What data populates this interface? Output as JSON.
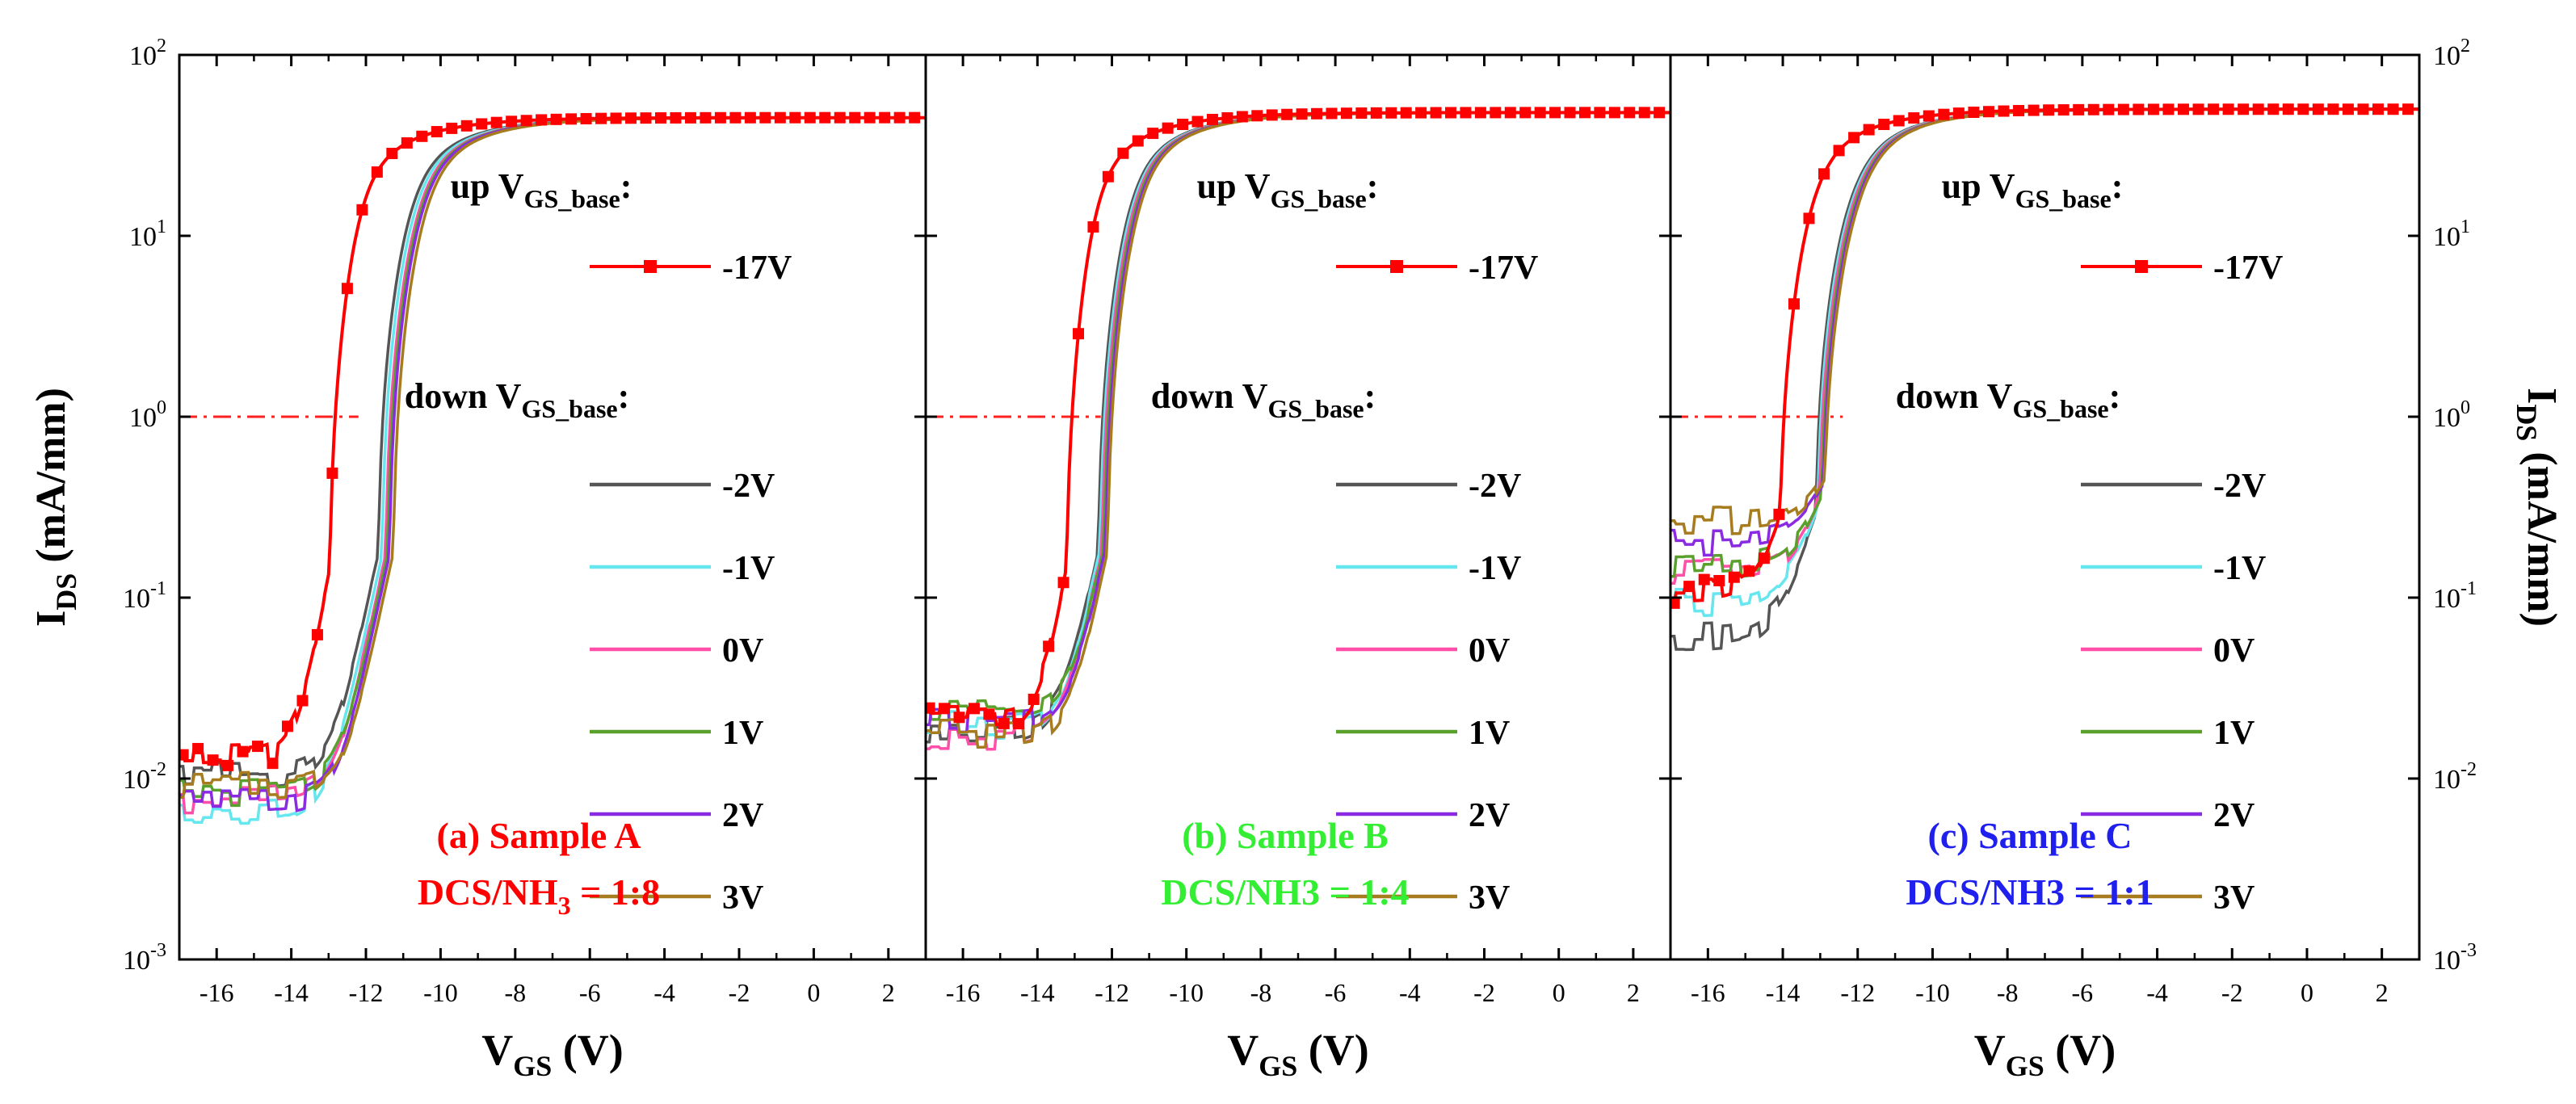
{
  "figure": {
    "ylabel_main": "I",
    "ylabel_sub": "DS",
    "ylabel_unit": " (mA/mm)",
    "xlabel_main": "V",
    "xlabel_sub": "GS",
    "xlabel_unit": " (V)",
    "y_tick_base": "10",
    "y_tick_exponents": [
      "-3",
      "-2",
      "-1",
      "0",
      "1",
      "2"
    ],
    "x_tick_labels": [
      "-16",
      "-14",
      "-12",
      "-10",
      "-8",
      "-6",
      "-4",
      "-2",
      "0",
      "2"
    ],
    "legend_up_title": "up V",
    "legend_down_title": "down V",
    "legend_title_sub": "GS_base",
    "legend_title_suffix": ":"
  },
  "chart_data": [
    {
      "type": "line",
      "panel": "a",
      "title_line1": "(a) Sample A",
      "title_line2_pre": "DCS/NH",
      "title_line2_sub": "3",
      "title_line2_post": " = 1:8",
      "title_color": "#ff0000",
      "xlim": [
        -17,
        3
      ],
      "ylim_log10": [
        -3,
        2
      ],
      "ylog": true,
      "reference_line": 1,
      "series": [
        {
          "name": "-17V",
          "group": "up",
          "color": "#ff0000",
          "marker": "square",
          "vth": -12.4,
          "ion": 45,
          "ss": 0.32,
          "floor": 0.013
        },
        {
          "name": "-2V",
          "group": "down",
          "color": "#555555",
          "vth": -11.1,
          "ion": 45,
          "ss": 0.38,
          "floor": 0.0105
        },
        {
          "name": "-1V",
          "group": "down",
          "color": "#66e6ee",
          "vth": -11.0,
          "ion": 45,
          "ss": 0.38,
          "floor": 0.0068
        },
        {
          "name": "0V",
          "group": "down",
          "color": "#ff4fa8",
          "vth": -10.9,
          "ion": 45,
          "ss": 0.38,
          "floor": 0.0078
        },
        {
          "name": "1V",
          "group": "down",
          "color": "#5aa02c",
          "vth": -10.85,
          "ion": 45,
          "ss": 0.38,
          "floor": 0.0085
        },
        {
          "name": "2V",
          "group": "down",
          "color": "#8a2be2",
          "vth": -10.8,
          "ion": 45,
          "ss": 0.38,
          "floor": 0.0075
        },
        {
          "name": "3V",
          "group": "down",
          "color": "#a67c1e",
          "vth": -10.7,
          "ion": 45,
          "ss": 0.38,
          "floor": 0.0092
        }
      ]
    },
    {
      "type": "line",
      "panel": "b",
      "title_line1": "(b) Sample B",
      "title_line2_pre": "DCS/NH3 = 1:4",
      "title_line2_sub": "",
      "title_line2_post": "",
      "title_color": "#33ee33",
      "xlim": [
        -17,
        3
      ],
      "ylim_log10": [
        -3,
        2
      ],
      "ylog": true,
      "reference_line": 1,
      "series": [
        {
          "name": "-17V",
          "group": "up",
          "color": "#ff0000",
          "marker": "square",
          "vth": -12.65,
          "ion": 48,
          "ss": 0.3,
          "floor": 0.022
        },
        {
          "name": "-2V",
          "group": "down",
          "color": "#555555",
          "vth": -11.8,
          "ion": 48,
          "ss": 0.36,
          "floor": 0.019
        },
        {
          "name": "-1V",
          "group": "down",
          "color": "#66e6ee",
          "vth": -11.75,
          "ion": 48,
          "ss": 0.36,
          "floor": 0.02
        },
        {
          "name": "0V",
          "group": "down",
          "color": "#ff4fa8",
          "vth": -11.7,
          "ion": 48,
          "ss": 0.36,
          "floor": 0.0175
        },
        {
          "name": "1V",
          "group": "down",
          "color": "#5aa02c",
          "vth": -11.65,
          "ion": 48,
          "ss": 0.36,
          "floor": 0.023
        },
        {
          "name": "2V",
          "group": "down",
          "color": "#8a2be2",
          "vth": -11.6,
          "ion": 48,
          "ss": 0.36,
          "floor": 0.021
        },
        {
          "name": "3V",
          "group": "down",
          "color": "#a67c1e",
          "vth": -11.55,
          "ion": 48,
          "ss": 0.36,
          "floor": 0.018
        }
      ]
    },
    {
      "type": "line",
      "panel": "c",
      "title_line1": "(c) Sample C",
      "title_line2_pre": "DCS/NH3 = 1:1",
      "title_line2_sub": "",
      "title_line2_post": "",
      "title_color": "#2020ee",
      "xlim": [
        -17,
        3
      ],
      "ylim_log10": [
        -3,
        2
      ],
      "ylog": true,
      "reference_line": 1,
      "series": [
        {
          "name": "-17V",
          "group": "up",
          "color": "#ff0000",
          "marker": "square",
          "vth": -13.5,
          "ion": 50,
          "ss": 0.38,
          "floor": 0.11
        },
        {
          "name": "-2V",
          "group": "down",
          "color": "#555555",
          "vth": -12.55,
          "ion": 50,
          "ss": 0.45,
          "floor": 0.062
        },
        {
          "name": "-1V",
          "group": "down",
          "color": "#66e6ee",
          "vth": -12.5,
          "ion": 50,
          "ss": 0.45,
          "floor": 0.095
        },
        {
          "name": "0V",
          "group": "down",
          "color": "#ff4fa8",
          "vth": -12.45,
          "ion": 50,
          "ss": 0.45,
          "floor": 0.14
        },
        {
          "name": "1V",
          "group": "down",
          "color": "#5aa02c",
          "vth": -12.4,
          "ion": 50,
          "ss": 0.45,
          "floor": 0.15
        },
        {
          "name": "2V",
          "group": "down",
          "color": "#8a2be2",
          "vth": -12.35,
          "ion": 50,
          "ss": 0.45,
          "floor": 0.2
        },
        {
          "name": "3V",
          "group": "down",
          "color": "#a67c1e",
          "vth": -12.3,
          "ion": 50,
          "ss": 0.45,
          "floor": 0.27
        }
      ]
    }
  ]
}
